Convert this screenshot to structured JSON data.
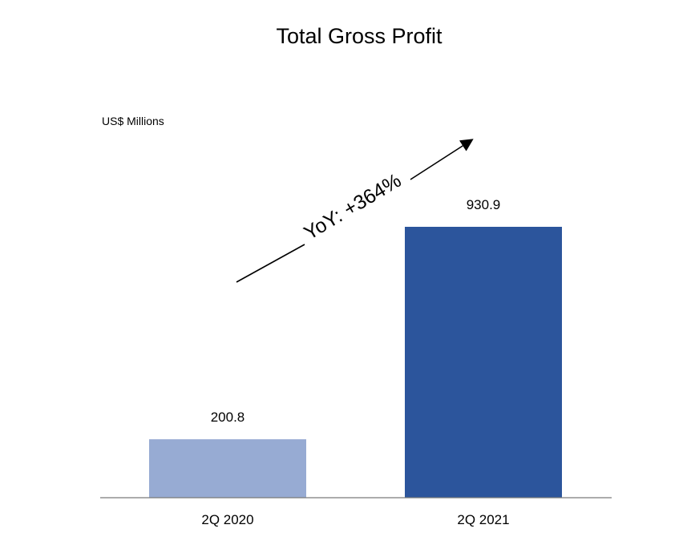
{
  "chart_data": {
    "type": "bar",
    "title": "Total Gross Profit",
    "ylabel": "US$ Millions",
    "xlabel": "",
    "categories": [
      "2Q 2020",
      "2Q 2021"
    ],
    "values": [
      200.8,
      930.9
    ],
    "value_labels": [
      "200.8",
      "930.9"
    ],
    "bar_colors": [
      "#97abd3",
      "#2c559c"
    ],
    "ylim": [
      0,
      930.9
    ],
    "grid": false,
    "legend": "none",
    "annotation": "YoY: +364%"
  }
}
